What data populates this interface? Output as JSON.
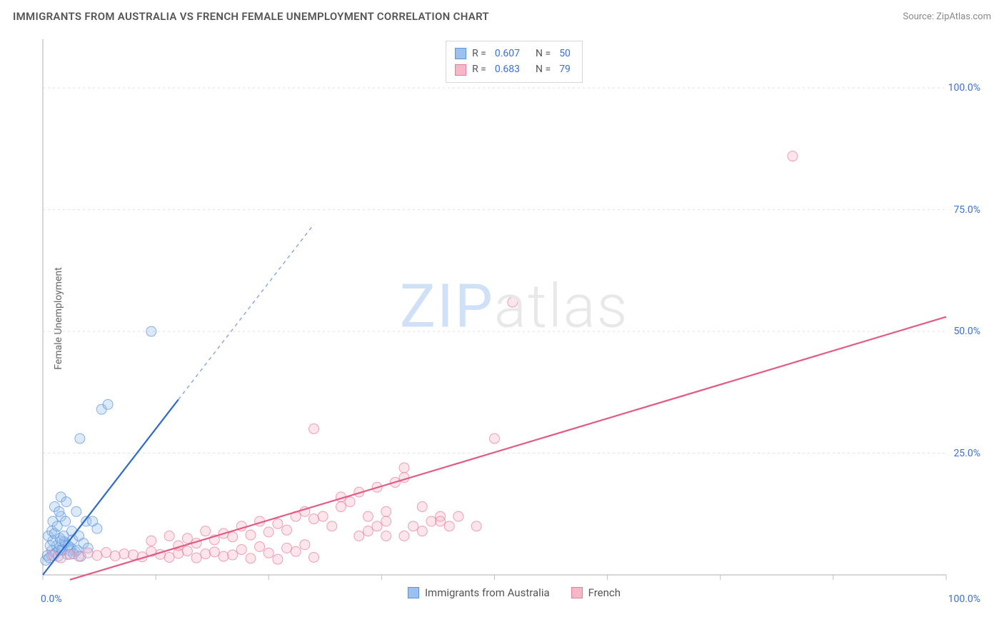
{
  "header": {
    "title": "IMMIGRANTS FROM AUSTRALIA VS FRENCH FEMALE UNEMPLOYMENT CORRELATION CHART",
    "source": "Source: ZipAtlas.com"
  },
  "watermark": {
    "part1": "ZIP",
    "part2": "atlas"
  },
  "ylabel": "Female Unemployment",
  "chart": {
    "type": "scatter",
    "background_color": "#ffffff",
    "grid_color": "#e0e0e0",
    "axis_color": "#bfbfbf",
    "tick_color": "#bfbfbf",
    "tick_label_color": "#3b6fd6",
    "xlim": [
      0,
      100
    ],
    "ylim": [
      0,
      110
    ],
    "yticks": [
      25,
      50,
      75,
      100
    ],
    "ytick_labels": [
      "25.0%",
      "50.0%",
      "75.0%",
      "100.0%"
    ],
    "xtick_positions": [
      0,
      12.5,
      25,
      37.5,
      50,
      62.5,
      75,
      87.5,
      100
    ],
    "xtick_labels": {
      "left": "0.0%",
      "right": "100.0%"
    },
    "marker_radius": 7,
    "marker_opacity": 0.35,
    "marker_stroke_opacity": 0.7,
    "line_width": 2.2
  },
  "series": [
    {
      "name": "Immigrants from Australia",
      "color_fill": "#9cc1ef",
      "color_stroke": "#5a93de",
      "color_line": "#2f69c9",
      "r": "0.607",
      "n": "50",
      "trend": {
        "x1": 0,
        "y1": 0,
        "x2": 15,
        "y2": 36,
        "dash_to_x": 30,
        "dash_to_y": 72
      },
      "points": [
        [
          0.3,
          3
        ],
        [
          0.5,
          4
        ],
        [
          0.7,
          3.5
        ],
        [
          1.0,
          5
        ],
        [
          1.2,
          4
        ],
        [
          1.5,
          6
        ],
        [
          1.8,
          5
        ],
        [
          2.0,
          7
        ],
        [
          2.2,
          5
        ],
        [
          2.5,
          6.5
        ],
        [
          0.8,
          6
        ],
        [
          1.1,
          7
        ],
        [
          1.4,
          4.5
        ],
        [
          1.7,
          3.8
        ],
        [
          2.1,
          5.2
        ],
        [
          2.4,
          6.8
        ],
        [
          2.7,
          4.2
        ],
        [
          3.1,
          5.5
        ],
        [
          3.3,
          7.2
        ],
        [
          3.6,
          4.8
        ],
        [
          0.6,
          8
        ],
        [
          1.0,
          9
        ],
        [
          1.3,
          8.5
        ],
        [
          1.9,
          7.5
        ],
        [
          2.3,
          8
        ],
        [
          2.8,
          6
        ],
        [
          3.0,
          5
        ],
        [
          3.4,
          4.3
        ],
        [
          3.8,
          5.1
        ],
        [
          4.2,
          3.8
        ],
        [
          1.1,
          11
        ],
        [
          1.6,
          10
        ],
        [
          2.0,
          12
        ],
        [
          2.5,
          11
        ],
        [
          1.3,
          14
        ],
        [
          1.8,
          13
        ],
        [
          3.2,
          9
        ],
        [
          4.0,
          8
        ],
        [
          4.5,
          6.5
        ],
        [
          5.0,
          5.5
        ],
        [
          2.0,
          16
        ],
        [
          2.6,
          15
        ],
        [
          3.7,
          13
        ],
        [
          4.8,
          11
        ],
        [
          6.0,
          9.5
        ],
        [
          5.5,
          11
        ],
        [
          4.1,
          28
        ],
        [
          6.5,
          34
        ],
        [
          7.2,
          35
        ],
        [
          12.0,
          50
        ]
      ]
    },
    {
      "name": "French",
      "color_fill": "#f6b8c8",
      "color_stroke": "#e87a9a",
      "color_line": "#e35a82",
      "r": "0.683",
      "n": "79",
      "trend": {
        "x1": 3,
        "y1": -1,
        "x2": 100,
        "y2": 53
      },
      "points": [
        [
          1,
          4
        ],
        [
          2,
          3.5
        ],
        [
          3,
          4.2
        ],
        [
          4,
          3.8
        ],
        [
          5,
          4.5
        ],
        [
          6,
          4
        ],
        [
          7,
          4.6
        ],
        [
          8,
          3.9
        ],
        [
          9,
          4.3
        ],
        [
          10,
          4.1
        ],
        [
          11,
          3.7
        ],
        [
          12,
          4.8
        ],
        [
          13,
          4.2
        ],
        [
          14,
          3.6
        ],
        [
          15,
          4.4
        ],
        [
          16,
          4.9
        ],
        [
          17,
          3.5
        ],
        [
          18,
          4.3
        ],
        [
          19,
          4.7
        ],
        [
          20,
          3.8
        ],
        [
          21,
          4.1
        ],
        [
          22,
          5.2
        ],
        [
          23,
          3.4
        ],
        [
          24,
          5.8
        ],
        [
          25,
          4.5
        ],
        [
          26,
          3.2
        ],
        [
          27,
          5.5
        ],
        [
          28,
          4.8
        ],
        [
          29,
          6.2
        ],
        [
          30,
          3.6
        ],
        [
          12,
          7
        ],
        [
          14,
          8
        ],
        [
          16,
          7.5
        ],
        [
          18,
          9
        ],
        [
          20,
          8.5
        ],
        [
          22,
          10
        ],
        [
          24,
          11
        ],
        [
          26,
          10.5
        ],
        [
          28,
          12
        ],
        [
          30,
          11.5
        ],
        [
          15,
          6
        ],
        [
          17,
          6.5
        ],
        [
          19,
          7.2
        ],
        [
          21,
          7.8
        ],
        [
          23,
          8.2
        ],
        [
          25,
          8.8
        ],
        [
          27,
          9.2
        ],
        [
          29,
          13
        ],
        [
          31,
          12
        ],
        [
          33,
          14
        ],
        [
          30,
          30
        ],
        [
          32,
          10
        ],
        [
          33,
          16
        ],
        [
          34,
          15
        ],
        [
          35,
          17
        ],
        [
          36,
          12
        ],
        [
          37,
          18
        ],
        [
          38,
          11
        ],
        [
          39,
          19
        ],
        [
          40,
          20
        ],
        [
          35,
          8
        ],
        [
          36,
          9
        ],
        [
          37,
          10
        ],
        [
          38,
          13
        ],
        [
          40,
          22
        ],
        [
          41,
          10
        ],
        [
          42,
          14
        ],
        [
          43,
          11
        ],
        [
          44,
          12
        ],
        [
          45,
          10
        ],
        [
          40,
          8
        ],
        [
          42,
          9
        ],
        [
          44,
          11
        ],
        [
          46,
          12
        ],
        [
          48,
          10
        ],
        [
          50,
          28
        ],
        [
          52,
          56
        ],
        [
          83,
          86
        ],
        [
          38,
          8
        ]
      ]
    }
  ],
  "legend_bottom": [
    {
      "label": "Immigrants from Australia",
      "fill": "#9cc1ef",
      "stroke": "#5a93de"
    },
    {
      "label": "French",
      "fill": "#f6b8c8",
      "stroke": "#e87a9a"
    }
  ]
}
